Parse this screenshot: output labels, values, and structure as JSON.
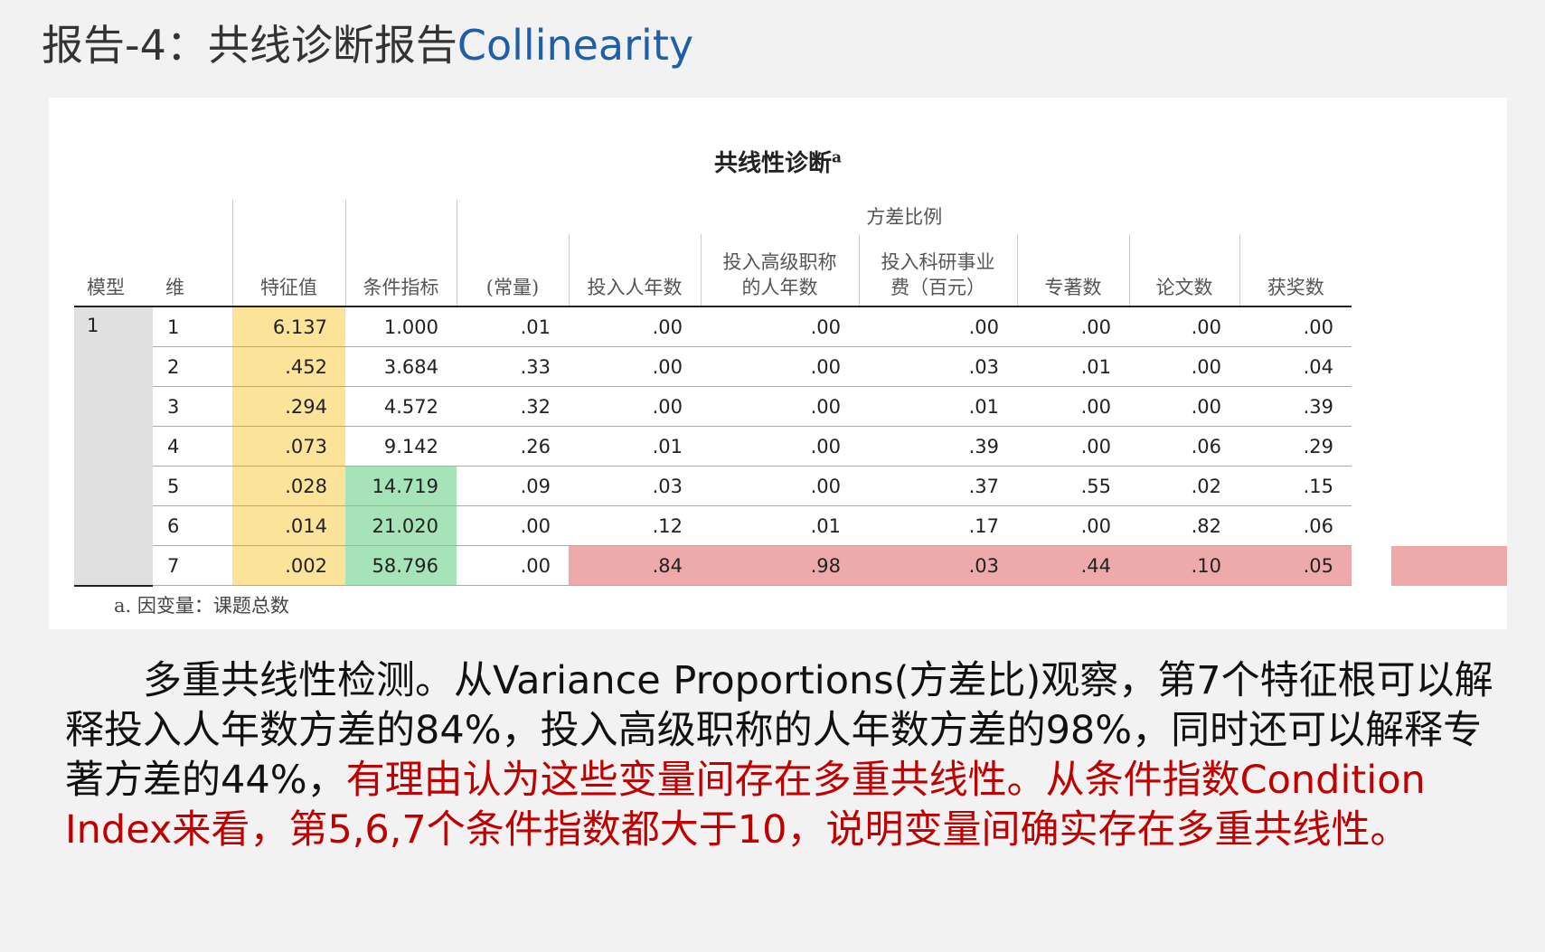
{
  "slide": {
    "title_cn": "报告-4：共线诊断报告",
    "title_en": "Collinearity"
  },
  "table": {
    "caption": "共线性诊断",
    "caption_sup": "a",
    "group_header": "方差比例",
    "headers": {
      "model": "模型",
      "dim": "维",
      "eigen": "特征值",
      "cond": "条件指标",
      "const": "(常量)",
      "v1": "投入人年数",
      "v2a": "投入高级职称",
      "v2b": "的人年数",
      "v3a": "投入科研事业",
      "v3b": "费（百元）",
      "v4": "专著数",
      "v5": "论文数",
      "v6": "获奖数"
    },
    "model_value": "1",
    "rows": [
      {
        "dim": "1",
        "eigen": "6.137",
        "cond": "1.000",
        "const": ".01",
        "v1": ".00",
        "v2": ".00",
        "v3": ".00",
        "v4": ".00",
        "v5": ".00",
        "v6": ".00"
      },
      {
        "dim": "2",
        "eigen": ".452",
        "cond": "3.684",
        "const": ".33",
        "v1": ".00",
        "v2": ".00",
        "v3": ".03",
        "v4": ".01",
        "v5": ".00",
        "v6": ".04"
      },
      {
        "dim": "3",
        "eigen": ".294",
        "cond": "4.572",
        "const": ".32",
        "v1": ".00",
        "v2": ".00",
        "v3": ".01",
        "v4": ".00",
        "v5": ".00",
        "v6": ".39"
      },
      {
        "dim": "4",
        "eigen": ".073",
        "cond": "9.142",
        "const": ".26",
        "v1": ".01",
        "v2": ".00",
        "v3": ".39",
        "v4": ".00",
        "v5": ".06",
        "v6": ".29"
      },
      {
        "dim": "5",
        "eigen": ".028",
        "cond": "14.719",
        "const": ".09",
        "v1": ".03",
        "v2": ".00",
        "v3": ".37",
        "v4": ".55",
        "v5": ".02",
        "v6": ".15"
      },
      {
        "dim": "6",
        "eigen": ".014",
        "cond": "21.020",
        "const": ".00",
        "v1": ".12",
        "v2": ".01",
        "v3": ".17",
        "v4": ".00",
        "v5": ".82",
        "v6": ".06"
      },
      {
        "dim": "7",
        "eigen": ".002",
        "cond": "58.796",
        "const": ".00",
        "v1": ".84",
        "v2": ".98",
        "v3": ".03",
        "v4": ".44",
        "v5": ".10",
        "v6": ".05"
      }
    ],
    "footnote": "a. 因变量：课题总数"
  },
  "explanation": {
    "indent": "　　",
    "black_part": "多重共线性检测。从Variance Proportions(方差比)观察，第7个特征根可以解释投入人年数方差的84%，投入高级职称的人年数方差的98%，同时还可以解释专著方差的44%，",
    "red_part": "有理由认为这些变量间存在多重共线性。从条件指数Condition Index来看，第5,6,7个条件指数都大于10，说明变量间确实存在多重共线性。"
  },
  "colors": {
    "highlight_yellow": "#fbe49a",
    "highlight_green": "#a6e3b8",
    "highlight_red": "#eeaaaa",
    "emphasis_text": "#c00000",
    "title_en": "#1f5fa8"
  }
}
